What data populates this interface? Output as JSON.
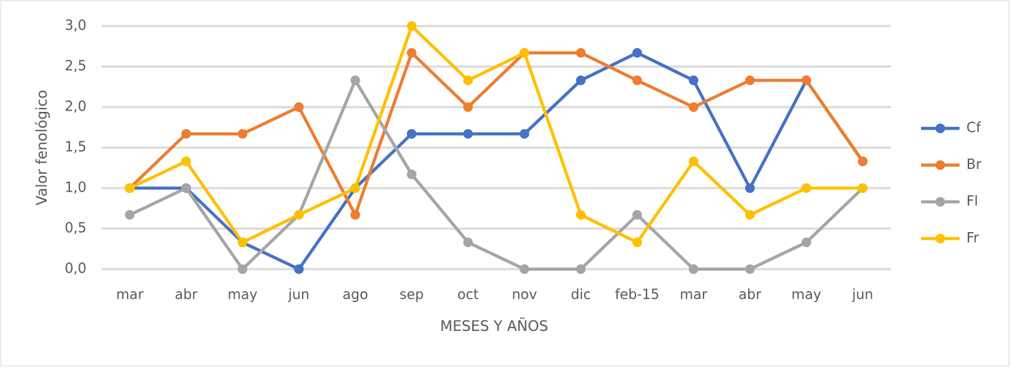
{
  "chart_data": {
    "type": "line",
    "x_label": "MESES Y AÑOS",
    "y_label": "Valor fenológico",
    "categories": [
      "mar",
      "abr",
      "may",
      "jun",
      "ago",
      "sep",
      "oct",
      "nov",
      "dic",
      "feb-15",
      "mar",
      "abr",
      "may",
      "jun"
    ],
    "series": [
      {
        "name": "Cf",
        "color": "#4472c4",
        "values": [
          1.0,
          1.0,
          0.33,
          0,
          1.0,
          1.67,
          1.67,
          1.67,
          2.33,
          2.67,
          2.33,
          1.0,
          2.33,
          1.33
        ]
      },
      {
        "name": "Br",
        "color": "#ed7d31",
        "values": [
          1.0,
          1.67,
          1.67,
          2.0,
          0.67,
          2.67,
          2.0,
          2.67,
          2.67,
          2.33,
          2.0,
          2.33,
          2.33,
          1.33
        ]
      },
      {
        "name": "Fl",
        "color": "#a5a5a5",
        "values": [
          0.67,
          1.0,
          0,
          0.67,
          2.33,
          1.17,
          0.33,
          0,
          0,
          0.67,
          0,
          0,
          0.33,
          1.0
        ]
      },
      {
        "name": "Fr",
        "color": "#ffc000",
        "values": [
          1.0,
          1.33,
          0.33,
          0.67,
          1.0,
          3.0,
          2.33,
          2.67,
          0.67,
          0.33,
          1.33,
          0.67,
          1.0,
          1.0
        ]
      }
    ],
    "ylim": [
      0,
      3
    ],
    "yticks": [
      {
        "value": 0,
        "label": "0,0"
      },
      {
        "value": 0.5,
        "label": "0,5"
      },
      {
        "value": 1,
        "label": "1,0"
      },
      {
        "value": 1.5,
        "label": "1,5"
      },
      {
        "value": 2,
        "label": "2,0"
      },
      {
        "value": 2.5,
        "label": "2,5"
      },
      {
        "value": 3,
        "label": "3,0"
      }
    ],
    "grid": true,
    "legend": "right"
  }
}
